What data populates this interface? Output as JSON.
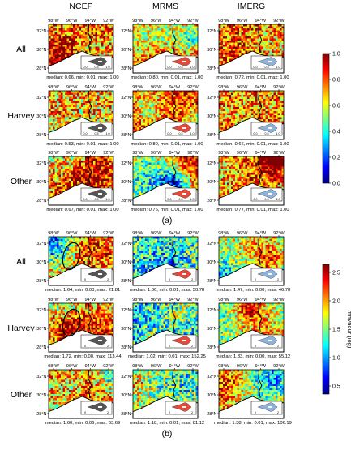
{
  "columns": [
    "NCEP",
    "MRMS",
    "IMERG"
  ],
  "panels": [
    {
      "label": "(a)",
      "rows": [
        "All",
        "Harvey",
        "Other"
      ],
      "stats": [
        [
          "median: 0.66, min: 0.01, max: 1.00",
          "median: 0.80, min: 0.01, max: 1.00",
          "median: 0.72, min: 0.01, max: 1.00"
        ],
        [
          "median: 0.53, min: 0.01, max: 1.00",
          "median: 0.80, min: 0.01, max: 1.00",
          "median: 0.66, min: 0.01, max: 1.00"
        ],
        [
          "median: 0.67, min: 0.01, max: 1.00",
          "median: 0.76, min: 0.01, max: 1.00",
          "median: 0.77, min: 0.01, max: 1.00"
        ]
      ],
      "inset_ticks": [
        "0.0",
        "0.5",
        "1.0"
      ],
      "colorbar": {
        "ticks": [
          "1.0",
          "0.8",
          "0.6",
          "0.4",
          "0.2",
          "0.0"
        ],
        "label": ""
      }
    },
    {
      "label": "(b)",
      "rows": [
        "All",
        "Harvey",
        "Other"
      ],
      "stats": [
        [
          "median: 1.64, min: 0.00, max: 21.81",
          "median: 1.06, min: 0.01, max: 50.78",
          "median: 1.47, min: 0.00, max: 46.78"
        ],
        [
          "median: 1.72, min: 0.00, max: 113.44",
          "median: 1.02, min: 0.01, max: 152.25",
          "median: 1.33, min: 0.00, max: 55.12"
        ],
        [
          "median: 1.60, min: 0.06, max: 63.69",
          "median: 1.18, min: 0.01, max: 81.12",
          "median: 1.38, min: 0.01, max: 106.19"
        ]
      ],
      "inset_ticks": [
        "0",
        "2"
      ],
      "colorbar": {
        "ticks": [
          "2.5",
          "2.0",
          "1.5",
          "1.0",
          "0.5"
        ],
        "label": "mm/hour (log)"
      }
    }
  ],
  "map_axes": {
    "lon_ticks": [
      "98°W",
      "96°W",
      "94°W",
      "92°W"
    ],
    "lat_ticks": [
      "32°N",
      "30°N",
      "28°N"
    ]
  },
  "colors": {
    "ncep_violin": "#555555",
    "mrms_violin": "#e8483a",
    "imerg_violin": "#8fb2d9",
    "colormap": [
      "#00007f",
      "#0000ff",
      "#007fff",
      "#00ffff",
      "#7fff7f",
      "#ffff00",
      "#ff7f00",
      "#ff0000",
      "#7f0000"
    ]
  }
}
